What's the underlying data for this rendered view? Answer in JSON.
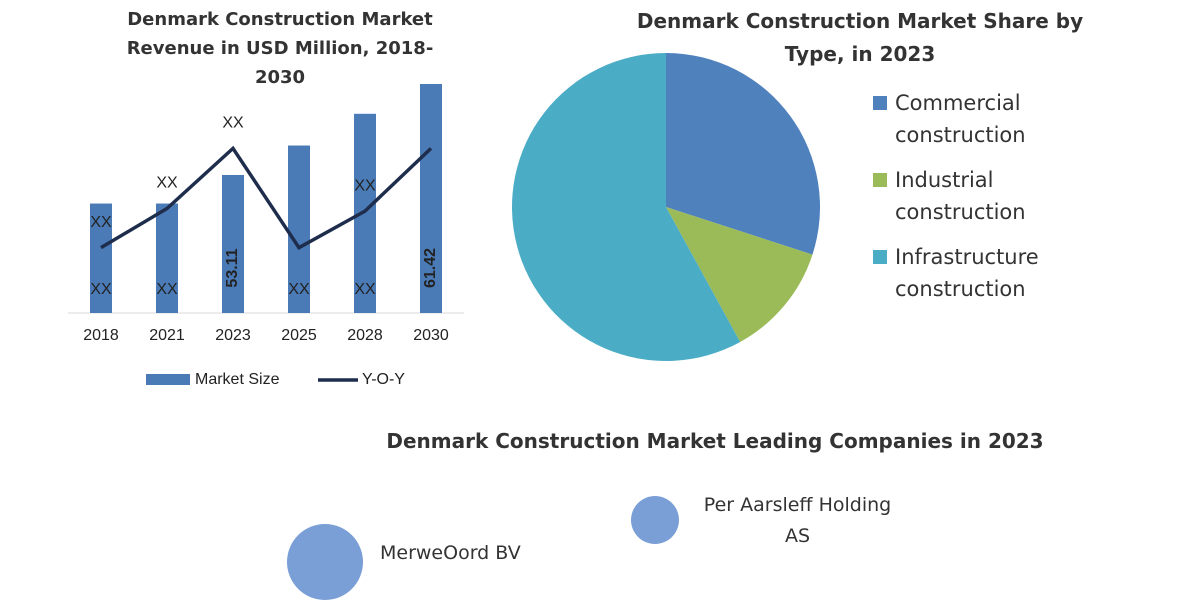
{
  "chart_data": [
    {
      "type": "bar",
      "title": "Denmark Construction Market Revenue in USD Million, 2018-2030",
      "categories": [
        "2018",
        "2021",
        "2023",
        "2025",
        "2028",
        "2030"
      ],
      "series": [
        {
          "name": "Market Size",
          "color": "#4a7bb7",
          "values": [
            50.5,
            50.5,
            53.11,
            55.8,
            58.7,
            61.42
          ],
          "value_labels": [
            "XX",
            "XX",
            "53.11",
            "XX",
            "XX",
            "61.42"
          ]
        },
        {
          "name": "Y-O-Y",
          "type": "line",
          "axis": "y2",
          "color": "#1f2d4d",
          "values": [
            3,
            4.5,
            6.8,
            3,
            4.4,
            6.8
          ],
          "value_labels": [
            "XX",
            "XX",
            "XX",
            null,
            "XX",
            null
          ]
        }
      ],
      "ylim": [
        40.5,
        62.7
      ],
      "y2lim": [
        0.5,
        9.8
      ],
      "legend": "bottom"
    },
    {
      "type": "pie",
      "title": "Denmark Construction Market Share by Type, in 2023",
      "categories": [
        "Commercial construction",
        "Industrial construction",
        "Infrastructure construction"
      ],
      "values": [
        30,
        12,
        58
      ],
      "colors": [
        "#4f81bd",
        "#9bbb59",
        "#4bacc6"
      ],
      "legend": "right"
    },
    {
      "type": "bubble",
      "title": "Denmark Construction Market Leading Companies in 2023",
      "categories": [
        "MerweOord BV",
        "Per Aarsleff Holding AS"
      ],
      "sizes": [
        38,
        24
      ],
      "color": "#7a9ed6"
    }
  ]
}
